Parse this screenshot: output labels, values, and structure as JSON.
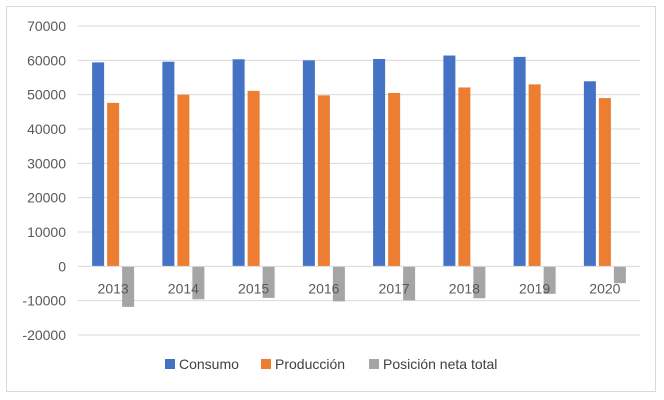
{
  "chart_data": {
    "type": "bar",
    "categories": [
      "2013",
      "2014",
      "2015",
      "2016",
      "2017",
      "2018",
      "2019",
      "2020"
    ],
    "series": [
      {
        "name": "Consumo",
        "color": "#4472C4",
        "values": [
          59400,
          59600,
          60300,
          60000,
          60400,
          61400,
          61000,
          53900
        ]
      },
      {
        "name": "Producción",
        "color": "#ED7D31",
        "values": [
          47600,
          50000,
          51100,
          49800,
          50500,
          52100,
          53000,
          49000
        ]
      },
      {
        "name": "Posición neta total",
        "color": "#A5A5A5",
        "values": [
          -11800,
          -9600,
          -9200,
          -10200,
          -9900,
          -9300,
          -8000,
          -4900
        ]
      }
    ],
    "ylim": [
      -20000,
      70000
    ],
    "yticks": [
      "-20000",
      "-10000",
      "0",
      "10000",
      "20000",
      "30000",
      "40000",
      "50000",
      "60000",
      "70000"
    ],
    "grid": true,
    "legend_position": "bottom",
    "title": "",
    "xlabel": "",
    "ylabel": ""
  }
}
